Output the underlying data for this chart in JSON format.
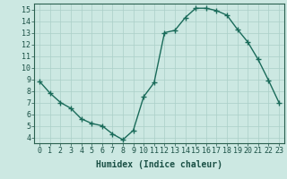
{
  "x": [
    0,
    1,
    2,
    3,
    4,
    5,
    6,
    7,
    8,
    9,
    10,
    11,
    12,
    13,
    14,
    15,
    16,
    17,
    18,
    19,
    20,
    21,
    22,
    23
  ],
  "y": [
    8.8,
    7.8,
    7.0,
    6.5,
    5.6,
    5.2,
    5.0,
    4.3,
    3.8,
    4.6,
    7.5,
    8.7,
    13.0,
    13.2,
    14.3,
    15.1,
    15.1,
    14.9,
    14.5,
    13.3,
    12.2,
    10.7,
    8.9,
    7.0
  ],
  "line_color": "#1a6b5a",
  "marker": "+",
  "marker_size": 4,
  "marker_linewidth": 1.0,
  "bg_color": "#cce8e2",
  "grid_color": "#aacfc8",
  "axis_color": "#2a6050",
  "xlabel": "Humidex (Indice chaleur)",
  "xlabel_fontsize": 7,
  "xlim": [
    -0.5,
    23.5
  ],
  "ylim": [
    3.5,
    15.5
  ],
  "yticks": [
    4,
    5,
    6,
    7,
    8,
    9,
    10,
    11,
    12,
    13,
    14,
    15
  ],
  "xticks": [
    0,
    1,
    2,
    3,
    4,
    5,
    6,
    7,
    8,
    9,
    10,
    11,
    12,
    13,
    14,
    15,
    16,
    17,
    18,
    19,
    20,
    21,
    22,
    23
  ],
  "tick_label_color": "#1a5045",
  "tick_label_fontsize": 6,
  "line_width": 1.0
}
